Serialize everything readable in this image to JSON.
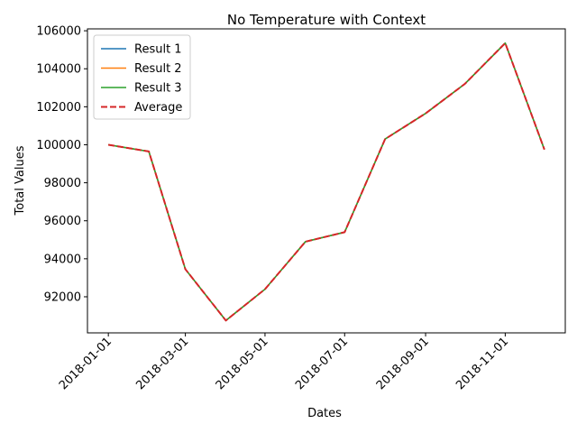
{
  "chart_data": {
    "type": "line",
    "title": "No Temperature with Context",
    "xlabel": "Dates",
    "ylabel": "Total Values",
    "x": [
      "2018-01-01",
      "2018-02-01",
      "2018-03-01",
      "2018-04-01",
      "2018-05-01",
      "2018-06-01",
      "2018-07-01",
      "2018-08-01",
      "2018-09-01",
      "2018-10-01",
      "2018-11-01",
      "2018-12-01"
    ],
    "x_ticks": [
      "2018-01-01",
      "2018-03-01",
      "2018-05-01",
      "2018-07-01",
      "2018-09-01",
      "2018-11-01"
    ],
    "xlim": [
      "2017-12-16",
      "2018-12-17"
    ],
    "y_ticks": [
      92000,
      94000,
      96000,
      98000,
      100000,
      102000,
      104000,
      106000
    ],
    "ylim": [
      90100,
      106100
    ],
    "grid": false,
    "legend_position": "top-left",
    "series": [
      {
        "name": "Result 1",
        "color": "#1f77b4",
        "style": "solid",
        "values": [
          100000,
          99650,
          93450,
          90750,
          92400,
          94900,
          95400,
          100300,
          101650,
          103200,
          105350,
          99750
        ]
      },
      {
        "name": "Result 2",
        "color": "#ff7f0e",
        "style": "solid",
        "values": [
          100000,
          99650,
          93450,
          90750,
          92400,
          94900,
          95400,
          100300,
          101650,
          103200,
          105350,
          99750
        ]
      },
      {
        "name": "Result 3",
        "color": "#2ca02c",
        "style": "solid",
        "values": [
          100000,
          99650,
          93450,
          90750,
          92400,
          94900,
          95400,
          100300,
          101650,
          103200,
          105350,
          99750
        ]
      },
      {
        "name": "Average",
        "color": "#d62728",
        "style": "dashed",
        "values": [
          100000,
          99650,
          93450,
          90750,
          92400,
          94900,
          95400,
          100300,
          101650,
          103200,
          105350,
          99750
        ]
      }
    ]
  }
}
